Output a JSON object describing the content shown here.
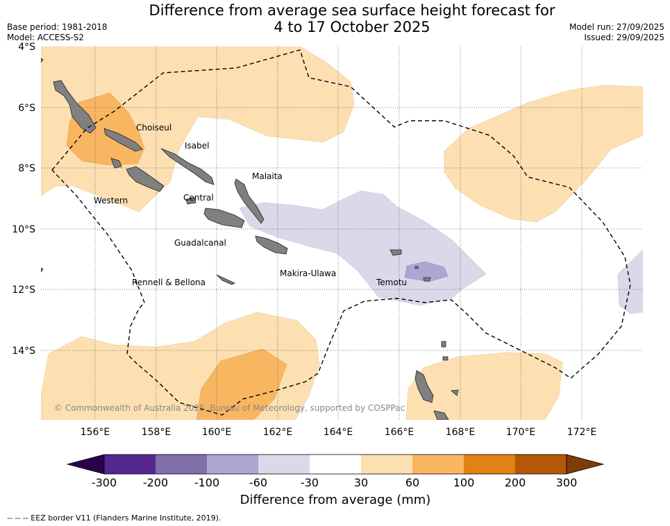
{
  "header": {
    "title_line1": "Difference from average sea surface height forecast for",
    "title_line2": "4 to 17 October 2025",
    "base_period": "Base period: 1981-2018",
    "model": "Model: ACCESS-S2",
    "model_run": "Model run: 27/09/2025",
    "issued": "Issued: 29/09/2025"
  },
  "map": {
    "lat_labels": [
      "4°S",
      "6°S",
      "8°S",
      "10°S",
      "12°S",
      "14°S"
    ],
    "lon_labels": [
      "156°E",
      "158°E",
      "160°E",
      "162°E",
      "164°E",
      "166°E",
      "168°E",
      "170°E",
      "172°E"
    ],
    "regions": {
      "choiseul": "Choiseul",
      "isabel": "Isabel",
      "malaita": "Malaita",
      "western": "Western",
      "central": "Central",
      "guadalcanal": "Guadalcanal",
      "makira": "Makira-Ulawa",
      "rennell": "Rennell & Bellona",
      "temotu": "Temotu"
    },
    "copyright": "© Commonwealth of Australia 2025, Bureau of Meteorology, supported by COSPPac"
  },
  "colorbar": {
    "ticks": [
      "-300",
      "-200",
      "-100",
      "-60",
      "-30",
      "30",
      "60",
      "100",
      "200",
      "300"
    ],
    "colors": [
      "#54278f",
      "#7f6fab",
      "#ada5d2",
      "#d9d9ea",
      "#ffffff",
      "#fde0b2",
      "#f9b661",
      "#e08214",
      "#b35806"
    ],
    "extend_low": "#2d004b",
    "extend_high": "#7f3b08",
    "label": "Difference from average (mm)"
  },
  "footnote": "--  --  -- EEZ border V11 (Flanders Marine Institute, 2019).",
  "colors": {
    "land": "#808080",
    "light_orange": "#fde0b2",
    "mid_orange": "#f9b661",
    "light_purple": "#d9d9ea",
    "mid_purple": "#ada5d2"
  }
}
